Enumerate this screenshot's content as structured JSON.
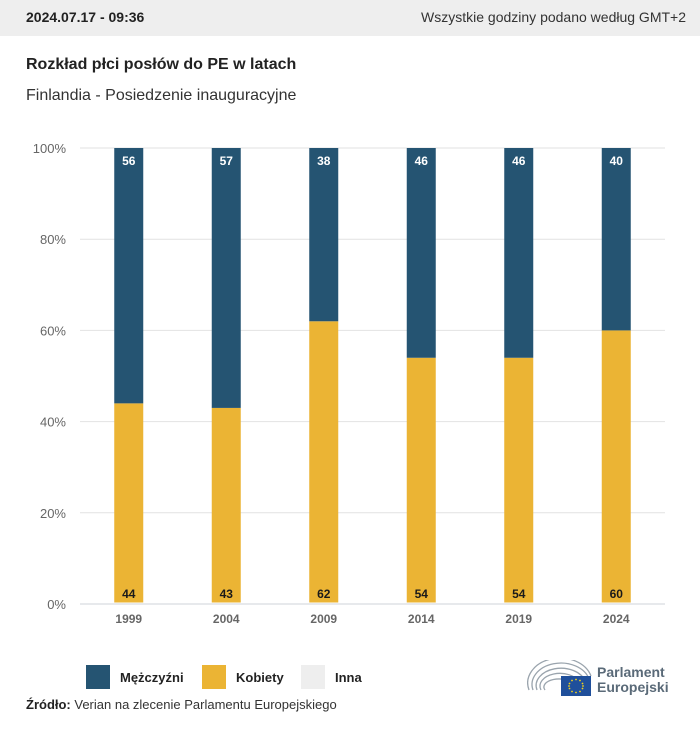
{
  "header": {
    "date": "2024.07.17 - 09:36",
    "timezone_note": "Wszystkie godziny podano według GMT+2"
  },
  "title": "Rozkład płci posłów do PE w latach",
  "subtitle": "Finlandia - Posiedzenie inauguracyjne",
  "colors": {
    "men": "#255472",
    "women": "#ebb434",
    "other": "#eeeeee",
    "grid": "#e2e2e2",
    "axis_text": "#666666"
  },
  "chart_data": {
    "type": "bar",
    "stacked": true,
    "title": "Rozkład płci posłów do PE w latach",
    "subtitle": "Finlandia - Posiedzenie inauguracyjne",
    "categories": [
      "1999",
      "2004",
      "2009",
      "2014",
      "2019",
      "2024"
    ],
    "series": [
      {
        "name": "Kobiety",
        "color": "#ebb434",
        "values": [
          44,
          43,
          62,
          54,
          54,
          60
        ]
      },
      {
        "name": "Mężczyźni",
        "color": "#255472",
        "values": [
          56,
          57,
          38,
          46,
          46,
          40
        ]
      },
      {
        "name": "Inna",
        "color": "#eeeeee",
        "values": [
          0,
          0,
          0,
          0,
          0,
          0
        ]
      }
    ],
    "y_ticks": [
      "0%",
      "20%",
      "40%",
      "60%",
      "80%",
      "100%"
    ],
    "ylim": [
      0,
      100
    ],
    "xlabel": "",
    "ylabel": "",
    "grid": true,
    "legend_position": "bottom-left"
  },
  "legend": [
    {
      "label": "Mężczyźni",
      "color": "#255472"
    },
    {
      "label": "Kobiety",
      "color": "#ebb434"
    },
    {
      "label": "Inna",
      "color": "#eeeeee"
    }
  ],
  "source": {
    "label": "Źródło:",
    "text": " Verian na zlecenie Parlamentu Europejskiego"
  },
  "logo": {
    "line1": "Parlament",
    "line2": "Europejski"
  }
}
